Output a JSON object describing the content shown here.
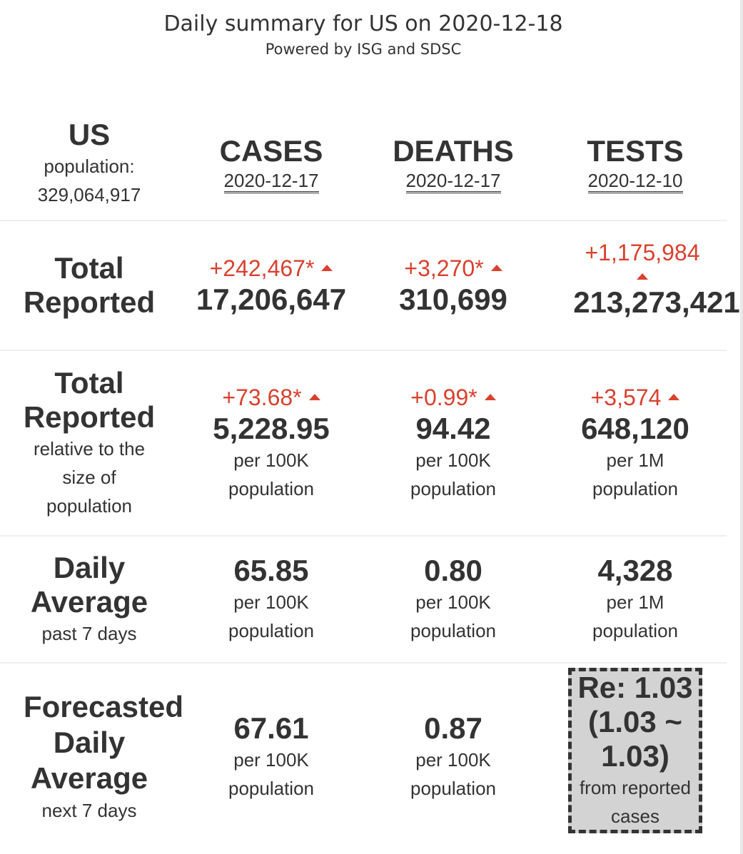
{
  "header": {
    "title": "Daily summary for US on 2020-12-18",
    "subtitle": "Powered by ISG and SDSC"
  },
  "region": {
    "name": "US",
    "population_label": "population:",
    "population_value": "329,064,917"
  },
  "columns": {
    "cases": {
      "label": "CASES",
      "date": "2020-12-17"
    },
    "deaths": {
      "label": "DEATHS",
      "date": "2020-12-17"
    },
    "tests": {
      "label": "TESTS",
      "date": "2020-12-10"
    }
  },
  "total_reported": {
    "label_line1": "Total",
    "label_line2": "Reported",
    "cases": {
      "delta": "+242,467*",
      "value": "17,206,647"
    },
    "deaths": {
      "delta": "+3,270*",
      "value": "310,699"
    },
    "tests": {
      "delta": "+1,175,984",
      "value": "213,273,421"
    }
  },
  "relative": {
    "label_line1": "Total",
    "label_line2": "Reported",
    "desc_line1": "relative to the",
    "desc_line2": "size of",
    "desc_line3": "population",
    "cases": {
      "delta": "+73.68*",
      "value": "5,228.95",
      "unit_line1": "per 100K",
      "unit_line2": "population"
    },
    "deaths": {
      "delta": "+0.99*",
      "value": "94.42",
      "unit_line1": "per 100K",
      "unit_line2": "population"
    },
    "tests": {
      "delta": "+3,574",
      "value": "648,120",
      "unit_line1": "per 1M",
      "unit_line2": "population"
    }
  },
  "daily_average": {
    "label_line1": "Daily",
    "label_line2": "Average",
    "desc": "past 7 days",
    "cases": {
      "value": "65.85",
      "unit_line1": "per 100K",
      "unit_line2": "population"
    },
    "deaths": {
      "value": "0.80",
      "unit_line1": "per 100K",
      "unit_line2": "population"
    },
    "tests": {
      "value": "4,328",
      "unit_line1": "per 1M",
      "unit_line2": "population"
    }
  },
  "forecast": {
    "label_line1": "Forecasted",
    "label_line2": "Daily",
    "label_line3": "Average",
    "desc": "next 7 days",
    "cases": {
      "value": "67.61",
      "unit_line1": "per 100K",
      "unit_line2": "population"
    },
    "deaths": {
      "value": "0.87",
      "unit_line1": "per 100K",
      "unit_line2": "population"
    },
    "re": {
      "line1": "Re: 1.03",
      "line2": "(1.03 ~",
      "line3": "1.03)",
      "desc_line1": "from reported",
      "desc_line2": "cases"
    }
  },
  "colors": {
    "increase": "#d9412e",
    "text": "#333333",
    "re_box_bg": "#d3d3d3"
  }
}
